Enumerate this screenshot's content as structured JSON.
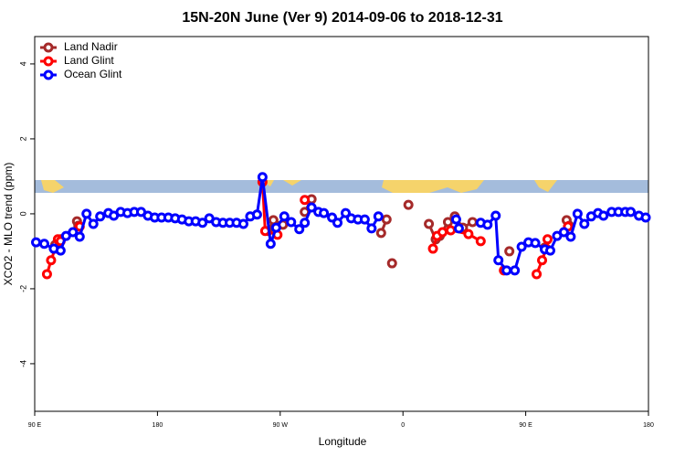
{
  "chart_data": {
    "type": "line",
    "title": "15N-20N June (Ver 9)   2014-09-06 to 2018-12-31",
    "x_label": "Longitude",
    "y_label": "XCO2 - MLO trend (ppm)",
    "xlim": [
      90,
      540
    ],
    "xticks": [
      {
        "value": 90,
        "label": "90 E"
      },
      {
        "value": 180,
        "label": "180"
      },
      {
        "value": 270,
        "label": "90 W"
      },
      {
        "value": 360,
        "label": "0"
      },
      {
        "value": 450,
        "label": "90 E"
      },
      {
        "value": 540,
        "label": "180"
      }
    ],
    "ylim": [
      -5.27,
      4.73
    ],
    "yticks": [
      -4,
      -2,
      0,
      2,
      4
    ],
    "legend": "top-left",
    "series": [
      {
        "name": "Land Nadir",
        "color": "#a52a2a",
        "x": [
          105,
          109,
          null,
          121,
          122,
          null,
          261,
          265,
          272,
          null,
          288,
          293,
          null,
          344,
          348,
          null,
          352,
          null,
          364,
          null,
          379,
          384,
          387,
          393,
          398,
          404,
          411,
          null,
          438,
          null,
          464,
          null,
          480,
          482
        ],
        "values": [
          -0.83,
          -0.68,
          null,
          -0.2,
          -0.32,
          null,
          -0.46,
          -0.17,
          -0.29,
          null,
          0.05,
          0.39,
          null,
          -0.51,
          -0.15,
          null,
          -1.32,
          null,
          0.24,
          null,
          -0.27,
          -0.68,
          -0.59,
          -0.22,
          -0.07,
          -0.37,
          -0.22,
          null,
          -1.0,
          null,
          -0.9,
          null,
          -0.17,
          -0.32
        ]
      },
      {
        "name": "Land Glint",
        "color": "#ff0000",
        "x": [
          99,
          102,
          105,
          107,
          109,
          null,
          123,
          null,
          257,
          259,
          268,
          null,
          288,
          null,
          382,
          385,
          389,
          395,
          408,
          417,
          null,
          434,
          null,
          458,
          462,
          465,
          466,
          null,
          481
        ],
        "values": [
          -1.61,
          -1.24,
          -0.93,
          -0.68,
          -0.73,
          null,
          -0.34,
          null,
          0.85,
          -0.46,
          -0.56,
          null,
          0.37,
          null,
          -0.93,
          -0.59,
          -0.49,
          -0.44,
          -0.54,
          -0.73,
          null,
          -1.51,
          null,
          -1.61,
          -1.24,
          -0.93,
          -0.68,
          null,
          -0.34
        ]
      },
      {
        "name": "Ocean Glint",
        "color": "#0000ff",
        "x": [
          91,
          97,
          104,
          109,
          113,
          118,
          123,
          128,
          133,
          138,
          144,
          148,
          153,
          158,
          163,
          168,
          173,
          178,
          183,
          188,
          193,
          198,
          203,
          208,
          213,
          218,
          223,
          228,
          233,
          238,
          243,
          248,
          253,
          257,
          263,
          267,
          273,
          278,
          284,
          288,
          293,
          298,
          302,
          308,
          312,
          318,
          322,
          327,
          332,
          337,
          342,
          null,
          399,
          401,
          null,
          417,
          422,
          428,
          430,
          436,
          442,
          447,
          452,
          457,
          464,
          468,
          473,
          478,
          483,
          488,
          493,
          498,
          503,
          507,
          513,
          518,
          523,
          527,
          533,
          538
        ],
        "values": [
          -0.76,
          -0.8,
          -0.93,
          -0.98,
          -0.59,
          -0.49,
          -0.61,
          0,
          -0.27,
          -0.07,
          0.02,
          -0.05,
          0.05,
          0.02,
          0.05,
          0.05,
          -0.05,
          -0.1,
          -0.1,
          -0.1,
          -0.12,
          -0.15,
          -0.2,
          -0.2,
          -0.24,
          -0.12,
          -0.22,
          -0.24,
          -0.24,
          -0.24,
          -0.27,
          -0.07,
          -0.02,
          0.98,
          -0.8,
          -0.37,
          -0.07,
          -0.22,
          -0.41,
          -0.24,
          0.17,
          0.05,
          0.02,
          -0.1,
          -0.24,
          0.02,
          -0.12,
          -0.15,
          -0.15,
          -0.39,
          -0.07,
          null,
          -0.15,
          -0.39,
          null,
          -0.24,
          -0.29,
          -0.05,
          -1.24,
          -1.51,
          -1.51,
          -0.88,
          -0.76,
          -0.78,
          -0.95,
          -0.98,
          -0.59,
          -0.49,
          -0.61,
          0,
          -0.27,
          -0.07,
          0.02,
          -0.05,
          0.05,
          0.05,
          0.05,
          0.05,
          -0.05,
          -0.1
        ]
      }
    ]
  }
}
